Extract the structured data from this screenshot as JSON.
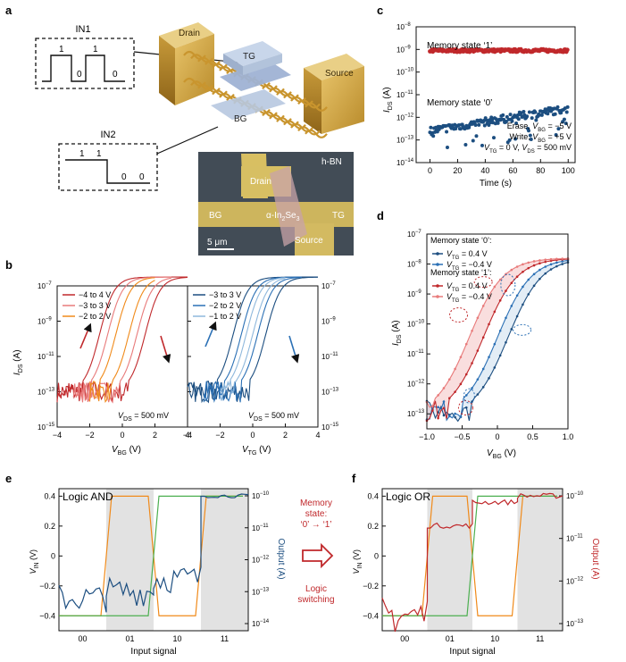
{
  "panels": {
    "a": "a",
    "b": "b",
    "c": "c",
    "d": "d",
    "e": "e",
    "f": "f"
  },
  "a": {
    "in1_label": "IN1",
    "in1_bits": [
      "1",
      "0",
      "1",
      "0"
    ],
    "in2_label": "IN2",
    "in2_bits": [
      "1",
      "1",
      "0",
      "0"
    ],
    "device_labels": {
      "drain": "Drain",
      "source": "Source",
      "tg": "TG",
      "bg": "BG"
    },
    "micrograph": {
      "hbn": "h-BN",
      "drain": "Drain",
      "bg": "BG",
      "material": "α-In",
      "material_sub": "2",
      "material_mid": "Se",
      "material_sub2": "3",
      "tg": "TG",
      "source": "Source",
      "scale": "5 μm"
    }
  },
  "colors": {
    "red": "#c0282b",
    "orange": "#f08a1a",
    "lightred": "#e87a7a",
    "navy": "#1c4e80",
    "blue": "#2b70b5",
    "lightblue": "#8fb8dc",
    "green": "#4caf50",
    "gray": "#e2e2e2"
  },
  "chart_data": [
    {
      "id": "b-left",
      "type": "line",
      "xlabel": "V",
      "xlabel_sub": "BG",
      "xlabel_unit": " (V)",
      "ylabel": "I",
      "ylabel_sub": "DS",
      "ylabel_unit": " (A)",
      "xlim": [
        -4,
        4
      ],
      "ylim_exp": [
        -15,
        -7
      ],
      "xticks": [
        "-4",
        "-2",
        "0",
        "2",
        "4"
      ],
      "yticks": [
        "10",
        "10",
        "10",
        "10",
        "10"
      ],
      "ytick_exp": [
        "-7",
        "-9",
        "-11",
        "-13",
        "-15"
      ],
      "annotation": "V",
      "annotation_sub": "DS",
      "annotation_rest": " = 500 mV",
      "series": [
        {
          "name": "−4 to 4 V",
          "color_key": "red",
          "vt_fwd": 1.4,
          "vt_rev": -1.4
        },
        {
          "name": "−3 to 3 V",
          "color_key": "lightred",
          "vt_fwd": 0.9,
          "vt_rev": -0.9
        },
        {
          "name": "−2 to 2 V",
          "color_key": "orange",
          "vt_fwd": 0.4,
          "vt_rev": -0.4
        }
      ]
    },
    {
      "id": "b-right",
      "type": "line",
      "xlabel": "V",
      "xlabel_sub": "TG",
      "xlabel_unit": " (V)",
      "xlim": [
        -4,
        4
      ],
      "ylim_exp": [
        -15,
        -7
      ],
      "xticks": [
        "-4",
        "-2",
        "0",
        "2",
        "4"
      ],
      "yticks": [
        "10",
        "10",
        "10",
        "10",
        "10"
      ],
      "ytick_exp": [
        "-7",
        "-9",
        "-11",
        "-13",
        "-15"
      ],
      "annotation": "V",
      "annotation_sub": "DS",
      "annotation_rest": " = 500 mV",
      "series": [
        {
          "name": "−3 to 3 V",
          "color_key": "navy",
          "vt_fwd": 0.8,
          "vt_rev": -1.2
        },
        {
          "name": "−2 to 2 V",
          "color_key": "blue",
          "vt_fwd": 0.3,
          "vt_rev": -0.7
        },
        {
          "name": "−1 to 2 V",
          "color_key": "lightblue",
          "vt_fwd": 0.0,
          "vt_rev": -0.4
        }
      ]
    },
    {
      "id": "c",
      "type": "scatter",
      "xlabel": "Time (s)",
      "ylabel": "I",
      "ylabel_sub": "DS",
      "ylabel_unit": " (A)",
      "xlim": [
        -10,
        105
      ],
      "ylim_exp": [
        -14,
        -8
      ],
      "xticks": [
        "0",
        "20",
        "40",
        "60",
        "80",
        "100"
      ],
      "yticks": [
        "10",
        "10",
        "10",
        "10",
        "10",
        "10",
        "10"
      ],
      "ytick_exp": [
        "-8",
        "-9",
        "-10",
        "-11",
        "-12",
        "-13",
        "-14"
      ],
      "series": [
        {
          "name": "Memory state ‘1’",
          "color_key": "red",
          "level_exp": -9.05
        },
        {
          "name": "Memory state ‘0’",
          "color_key": "navy",
          "start_exp": -12.6,
          "end_exp": -11.6
        }
      ],
      "conditions": [
        [
          "Erase, ",
          "V",
          "BG",
          " = −5 V"
        ],
        [
          "Write, ",
          "V",
          "BG",
          " = +5 V"
        ],
        [
          "",
          "V",
          "TG",
          " = 0 V, ",
          "V",
          "DS",
          " = 500 mV"
        ]
      ]
    },
    {
      "id": "d",
      "type": "line",
      "xlabel": "V",
      "xlabel_sub": "BG",
      "xlabel_unit": " (V)",
      "ylabel": "I",
      "ylabel_sub": "DS",
      "ylabel_unit": " (A)",
      "xlim": [
        -1.0,
        1.0
      ],
      "ylim_exp": [
        -13.5,
        -7
      ],
      "xticks": [
        "-1.0",
        "-0.5",
        "0",
        "0.5",
        "1.0"
      ],
      "yticks": [
        "10",
        "10",
        "10",
        "10",
        "10",
        "10",
        "10"
      ],
      "ytick_exp": [
        "-7",
        "-8",
        "-9",
        "-10",
        "-11",
        "-12",
        "-13"
      ],
      "legend_head0": "Memory state ‘0’:",
      "legend_head1": "Memory state ‘1’:",
      "series": [
        {
          "name": "V_TG = 0.4 V",
          "state": "0",
          "color_key": "navy",
          "center": 0.15
        },
        {
          "name": "V_TG = −0.4 V",
          "state": "0",
          "color_key": "blue",
          "center": 0.0
        },
        {
          "name": "V_TG = 0.4 V",
          "state": "1",
          "color_key": "red",
          "center": -0.2
        },
        {
          "name": "V_TG = −0.4 V",
          "state": "1",
          "color_key": "lightred",
          "center": -0.4
        }
      ],
      "legend_vals": [
        "= 0.4 V",
        "= −0.4 V",
        "= 0.4 V",
        "= −0.4 V"
      ]
    },
    {
      "id": "e",
      "type": "line",
      "title": "Logic AND",
      "xlabel": "Input signal",
      "ylabel": "V",
      "ylabel_sub": "IN",
      "ylabel_unit": " (V)",
      "y2label": "Output (A)",
      "ylim": [
        -0.5,
        0.45
      ],
      "yticks": [
        "0.4",
        "0.2",
        "0",
        "-0.2",
        "-0.4"
      ],
      "y2ticks": [
        "10",
        "10",
        "10",
        "10",
        "10"
      ],
      "y2tick_exp": [
        "-10",
        "-11",
        "-12",
        "-13",
        "-14"
      ],
      "categories": [
        "00",
        "01",
        "10",
        "11"
      ],
      "in1": [
        -0.4,
        0.4,
        -0.4,
        0.4
      ],
      "in2": [
        -0.4,
        -0.4,
        0.4,
        0.4
      ],
      "output_exp": [
        -13.2,
        -13.0,
        -12.6,
        -10.0
      ],
      "output_color_key": "navy"
    },
    {
      "id": "f",
      "type": "line",
      "title": "Logic OR",
      "xlabel": "Input signal",
      "ylabel": "V",
      "ylabel_sub": "IN",
      "ylabel_unit": " (V)",
      "y2label": "Output (A)",
      "ylim": [
        -0.5,
        0.45
      ],
      "yticks": [
        "0.4",
        "0.2",
        "0",
        "-0.2",
        "-0.4"
      ],
      "y2ticks": [
        "10",
        "10",
        "10",
        "10"
      ],
      "y2tick_exp": [
        "-10",
        "-11",
        "-12",
        "-13"
      ],
      "categories": [
        "00",
        "01",
        "10",
        "11"
      ],
      "in1": [
        -0.4,
        0.4,
        -0.4,
        0.4
      ],
      "in2": [
        -0.4,
        -0.4,
        0.4,
        0.4
      ],
      "output_exp": [
        -12.8,
        -10.7,
        -10.15,
        -10.0
      ],
      "output_color_key": "red"
    }
  ],
  "middle": {
    "l1": "Memory",
    "l2": "state:",
    "l3": "‘0’ → ‘1’",
    "l4": "Logic",
    "l5": "switching"
  }
}
